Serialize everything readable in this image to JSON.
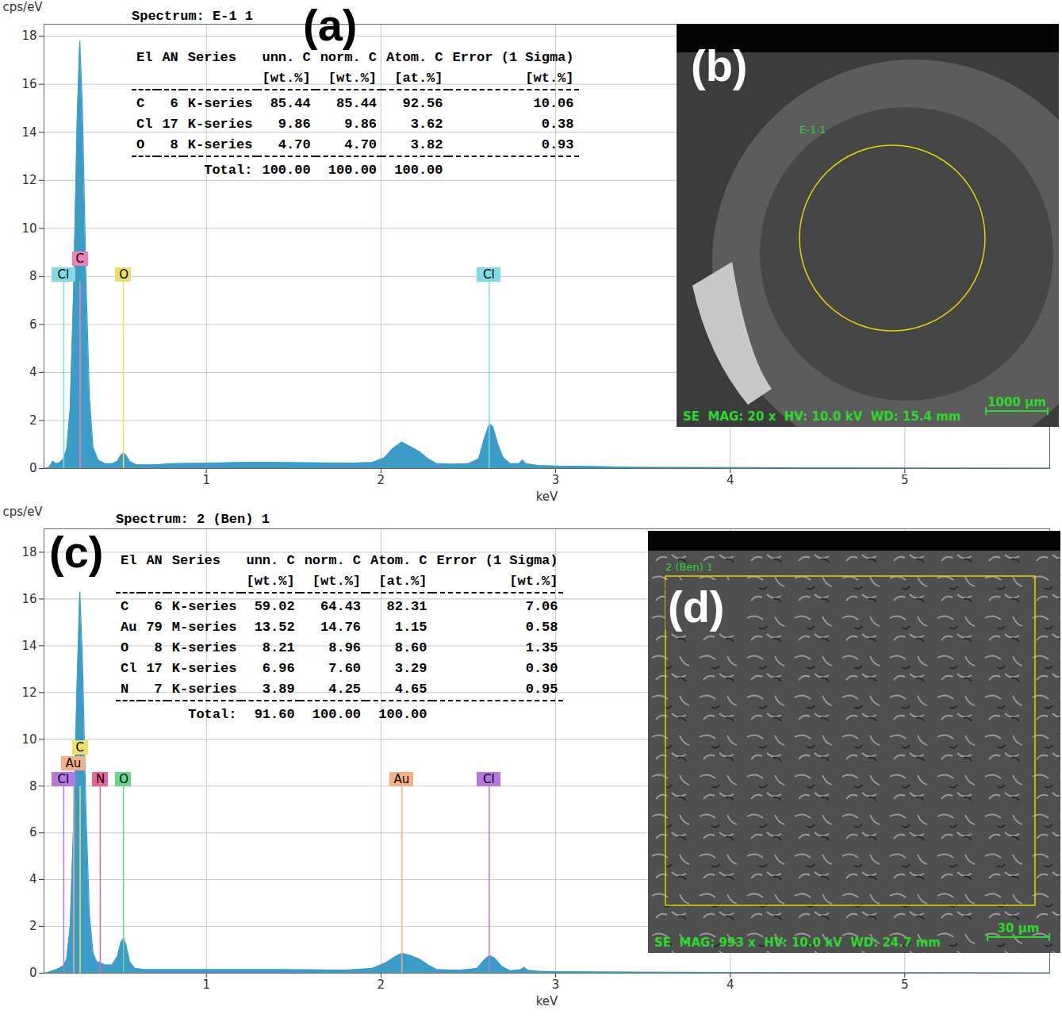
{
  "chart_data": [
    {
      "type": "area",
      "panel_label": "(a)",
      "y_label": "cps/eV",
      "x_label": "keV",
      "color": "#3b9cc8",
      "xlim": [
        0.07,
        5.83
      ],
      "ylim": [
        0,
        18.5
      ],
      "xticks": [
        1,
        2,
        3,
        4,
        5
      ],
      "yticks": [
        0,
        2,
        4,
        6,
        8,
        10,
        12,
        14,
        16,
        18
      ],
      "grid": true,
      "x": [
        0.07,
        0.1,
        0.12,
        0.14,
        0.16,
        0.18,
        0.2,
        0.22,
        0.24,
        0.26,
        0.275,
        0.29,
        0.31,
        0.33,
        0.35,
        0.38,
        0.42,
        0.46,
        0.49,
        0.51,
        0.525,
        0.54,
        0.56,
        0.6,
        0.7,
        0.8,
        1.0,
        1.2,
        1.4,
        1.6,
        1.8,
        1.95,
        2.02,
        2.07,
        2.12,
        2.17,
        2.22,
        2.27,
        2.32,
        2.4,
        2.5,
        2.56,
        2.59,
        2.62,
        2.64,
        2.67,
        2.7,
        2.74,
        2.79,
        2.81,
        2.83,
        2.9,
        3.0,
        3.5,
        4.0,
        4.5,
        5.0,
        5.83
      ],
      "values": [
        0,
        0.05,
        0.3,
        0.2,
        0.25,
        0.4,
        0.8,
        2.5,
        7.5,
        14.5,
        17.8,
        15.0,
        8.0,
        3.0,
        0.9,
        0.35,
        0.2,
        0.2,
        0.3,
        0.55,
        0.65,
        0.55,
        0.3,
        0.15,
        0.15,
        0.2,
        0.22,
        0.25,
        0.25,
        0.24,
        0.22,
        0.25,
        0.45,
        0.85,
        1.1,
        0.9,
        0.7,
        0.4,
        0.2,
        0.18,
        0.2,
        0.4,
        1.2,
        1.85,
        1.75,
        1.0,
        0.45,
        0.2,
        0.2,
        0.35,
        0.2,
        0.12,
        0.1,
        0.05,
        0.04,
        0.03,
        0.02,
        0.01
      ],
      "markers": [
        {
          "label": "Cl",
          "x": 0.183,
          "color": "#7fdbe8"
        },
        {
          "label": "C",
          "x": 0.277,
          "color": "#f07fb4"
        },
        {
          "label": "O",
          "x": 0.525,
          "color": "#eee060"
        },
        {
          "label": "Cl",
          "x": 2.62,
          "color": "#7fdbe8"
        }
      ],
      "table": {
        "spectrum": "Spectrum: E-1 1",
        "columns": [
          "El",
          "AN",
          "Series",
          "unn. C",
          "norm. C",
          "Atom. C",
          "Error (1 Sigma)"
        ],
        "units": [
          "[wt.%]",
          "[wt.%]",
          "[at.%]",
          "[wt.%]"
        ],
        "rows": [
          [
            "C",
            "6",
            "K-series",
            "85.44",
            "85.44",
            "92.56",
            "10.06"
          ],
          [
            "Cl",
            "17",
            "K-series",
            "9.86",
            "9.86",
            "3.62",
            "0.38"
          ],
          [
            "O",
            "8",
            "K-series",
            "4.70",
            "4.70",
            "3.82",
            "0.93"
          ]
        ],
        "total": [
          "Total:",
          "100.00",
          "100.00",
          "100.00"
        ]
      },
      "image": {
        "panel_label": "(b)",
        "region_label": "E-1 1",
        "info": "SE  MAG: 20 x  HV: 10.0 kV  WD: 15.4 mm",
        "scale_bar": "1000 µm",
        "region_shape": "circle"
      }
    },
    {
      "type": "area",
      "panel_label": "(c)",
      "y_label": "cps/eV",
      "x_label": "keV",
      "color": "#3b9cc8",
      "xlim": [
        0.07,
        5.83
      ],
      "ylim": [
        0,
        19
      ],
      "xticks": [
        1,
        2,
        3,
        4,
        5
      ],
      "yticks": [
        0,
        2,
        4,
        6,
        8,
        10,
        12,
        14,
        16,
        18
      ],
      "grid": true,
      "x": [
        0.07,
        0.1,
        0.14,
        0.18,
        0.2,
        0.22,
        0.24,
        0.26,
        0.275,
        0.29,
        0.31,
        0.33,
        0.35,
        0.37,
        0.39,
        0.42,
        0.46,
        0.49,
        0.51,
        0.525,
        0.54,
        0.56,
        0.59,
        0.65,
        0.8,
        1.0,
        1.2,
        1.4,
        1.6,
        1.8,
        1.95,
        2.03,
        2.08,
        2.12,
        2.17,
        2.22,
        2.27,
        2.32,
        2.45,
        2.55,
        2.59,
        2.62,
        2.65,
        2.69,
        2.74,
        2.8,
        2.82,
        2.84,
        2.9,
        3.0,
        3.5,
        4.0,
        4.5,
        5.0,
        5.83
      ],
      "values": [
        0,
        0.05,
        0.15,
        0.3,
        0.6,
        2.0,
        6.5,
        12.5,
        16.3,
        13.5,
        7.0,
        2.5,
        0.9,
        0.5,
        0.45,
        0.35,
        0.35,
        0.7,
        1.3,
        1.5,
        1.2,
        0.5,
        0.2,
        0.15,
        0.15,
        0.15,
        0.15,
        0.15,
        0.14,
        0.13,
        0.2,
        0.45,
        0.7,
        0.85,
        0.75,
        0.6,
        0.35,
        0.15,
        0.12,
        0.2,
        0.55,
        0.75,
        0.65,
        0.3,
        0.1,
        0.15,
        0.25,
        0.12,
        0.08,
        0.06,
        0.04,
        0.03,
        0.02,
        0.02,
        0.01
      ],
      "markers": [
        {
          "label": "Cl",
          "x": 0.183,
          "color": "#b877e0"
        },
        {
          "label": "Au",
          "x": 0.24,
          "color": "#f5b183"
        },
        {
          "label": "C",
          "x": 0.277,
          "color": "#eee060"
        },
        {
          "label": "N",
          "x": 0.392,
          "color": "#f0609a"
        },
        {
          "label": "O",
          "x": 0.525,
          "color": "#60d98f"
        },
        {
          "label": "Au",
          "x": 2.12,
          "color": "#f5b183"
        },
        {
          "label": "Cl",
          "x": 2.62,
          "color": "#b877e0"
        }
      ],
      "table": {
        "spectrum": "Spectrum: 2 (Ben) 1",
        "columns": [
          "El",
          "AN",
          "Series",
          "unn. C",
          "norm. C",
          "Atom. C",
          "Error (1 Sigma)"
        ],
        "units": [
          "[wt.%]",
          "[wt.%]",
          "[at.%]",
          "[wt.%]"
        ],
        "rows": [
          [
            "C",
            "6",
            "K-series",
            "59.02",
            "64.43",
            "82.31",
            "7.06"
          ],
          [
            "Au",
            "79",
            "M-series",
            "13.52",
            "14.76",
            "1.15",
            "0.58"
          ],
          [
            "O",
            "8",
            "K-series",
            "8.21",
            "8.96",
            "8.60",
            "1.35"
          ],
          [
            "Cl",
            "17",
            "K-series",
            "6.96",
            "7.60",
            "3.29",
            "0.30"
          ],
          [
            "N",
            "7",
            "K-series",
            "3.89",
            "4.25",
            "4.65",
            "0.95"
          ]
        ],
        "total": [
          "Total:",
          "91.60",
          "100.00",
          "100.00"
        ]
      },
      "image": {
        "panel_label": "(d)",
        "region_label": "2 (Ben) 1",
        "info": "SE  MAG: 993 x  HV: 10.0 kV  WD: 24.7 mm",
        "scale_bar": "30 µm",
        "region_shape": "rectangle"
      }
    }
  ]
}
